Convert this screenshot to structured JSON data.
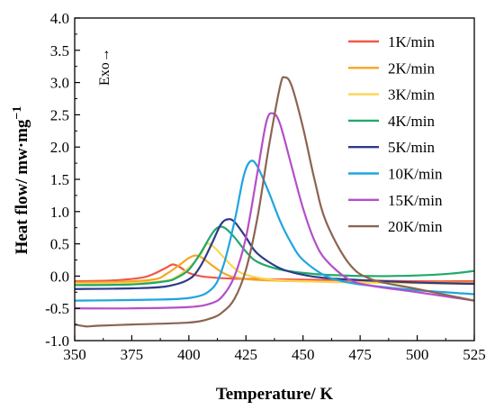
{
  "chart_data": {
    "type": "line",
    "title": "",
    "xlabel": "Temperature/ K",
    "ylabel_main": "Heat flow/ mw·mg",
    "ylabel_sup": "−1",
    "annotation": "Exo→",
    "xlim": [
      350,
      525
    ],
    "ylim": [
      -1.0,
      4.0
    ],
    "xticks": [
      350,
      375,
      400,
      425,
      450,
      475,
      500,
      525
    ],
    "xtick_labels": [
      "350",
      "375",
      "400",
      "425",
      "450",
      "475",
      "500",
      "525"
    ],
    "yticks": [
      -1.0,
      -0.5,
      0.0,
      0.5,
      1.0,
      1.5,
      2.0,
      2.5,
      3.0,
      3.5,
      4.0
    ],
    "ytick_labels": [
      "-1.0",
      "-0.5",
      "0.0",
      "0.5",
      "1.0",
      "1.5",
      "2.0",
      "2.5",
      "3.0",
      "3.5",
      "4.0"
    ],
    "grid": false,
    "legend_position": "top-right",
    "series": [
      {
        "name": "1K/min",
        "color": "#f0584a",
        "x": [
          350,
          360,
          370,
          380,
          385,
          390,
          393,
          396,
          400,
          405,
          410,
          420,
          440,
          460,
          480,
          500,
          525
        ],
        "y": [
          -0.08,
          -0.075,
          -0.06,
          -0.02,
          0.04,
          0.13,
          0.18,
          0.14,
          0.05,
          0.0,
          -0.02,
          -0.04,
          -0.05,
          -0.06,
          -0.07,
          -0.08,
          -0.08
        ]
      },
      {
        "name": "2K/min",
        "color": "#f6a623",
        "x": [
          350,
          370,
          385,
          390,
          395,
          400,
          403,
          406,
          410,
          415,
          420,
          430,
          450,
          470,
          500,
          525
        ],
        "y": [
          -0.1,
          -0.09,
          -0.05,
          0.03,
          0.15,
          0.28,
          0.32,
          0.28,
          0.17,
          0.05,
          -0.02,
          -0.06,
          -0.08,
          -0.09,
          -0.1,
          -0.1
        ]
      },
      {
        "name": "3K/min",
        "color": "#fad550",
        "x": [
          350,
          375,
          390,
          395,
          400,
          405,
          408,
          411,
          415,
          420,
          425,
          435,
          450,
          475,
          500,
          525
        ],
        "y": [
          -0.12,
          -0.11,
          -0.07,
          0.0,
          0.13,
          0.33,
          0.5,
          0.45,
          0.3,
          0.12,
          0.02,
          -0.05,
          -0.08,
          -0.1,
          -0.11,
          -0.12
        ]
      },
      {
        "name": "4K/min",
        "color": "#21a86b",
        "x": [
          350,
          375,
          390,
          395,
          400,
          405,
          410,
          413,
          416,
          420,
          425,
          430,
          440,
          450,
          460,
          480,
          500,
          515,
          525
        ],
        "y": [
          -0.14,
          -0.13,
          -0.08,
          -0.02,
          0.1,
          0.35,
          0.65,
          0.76,
          0.74,
          0.6,
          0.38,
          0.22,
          0.1,
          0.05,
          0.02,
          0.0,
          0.01,
          0.04,
          0.08
        ]
      },
      {
        "name": "5K/min",
        "color": "#2e3a87",
        "x": [
          350,
          375,
          390,
          400,
          405,
          410,
          414,
          417,
          420,
          425,
          430,
          440,
          450,
          460,
          480,
          500,
          525
        ],
        "y": [
          -0.2,
          -0.19,
          -0.16,
          -0.05,
          0.15,
          0.5,
          0.8,
          0.88,
          0.84,
          0.6,
          0.35,
          0.12,
          0.02,
          -0.03,
          -0.07,
          -0.1,
          -0.12
        ]
      },
      {
        "name": "10K/min",
        "color": "#1fa5e0",
        "x": [
          350,
          375,
          400,
          410,
          415,
          420,
          424,
          427,
          430,
          435,
          440,
          445,
          450,
          460,
          470,
          480,
          500,
          525
        ],
        "y": [
          -0.38,
          -0.37,
          -0.34,
          -0.2,
          0.15,
          0.85,
          1.55,
          1.78,
          1.7,
          1.3,
          0.85,
          0.5,
          0.25,
          0.0,
          -0.1,
          -0.15,
          -0.22,
          -0.28
        ]
      },
      {
        "name": "15K/min",
        "color": "#b44fc8",
        "x": [
          350,
          375,
          400,
          410,
          415,
          420,
          425,
          430,
          434,
          437,
          440,
          445,
          450,
          455,
          460,
          470,
          480,
          500,
          525
        ],
        "y": [
          -0.5,
          -0.5,
          -0.48,
          -0.42,
          -0.3,
          0.0,
          0.6,
          1.6,
          2.4,
          2.52,
          2.35,
          1.7,
          1.05,
          0.55,
          0.25,
          -0.05,
          -0.15,
          -0.25,
          -0.38
        ]
      },
      {
        "name": "20K/min",
        "color": "#8b6452",
        "x": [
          350,
          355,
          360,
          375,
          400,
          410,
          415,
          420,
          425,
          430,
          435,
          440,
          442,
          445,
          450,
          455,
          460,
          470,
          480,
          500,
          525
        ],
        "y": [
          -0.75,
          -0.78,
          -0.77,
          -0.75,
          -0.72,
          -0.65,
          -0.55,
          -0.35,
          0.1,
          0.9,
          2.0,
          2.95,
          3.08,
          2.95,
          2.3,
          1.5,
          0.85,
          0.2,
          -0.05,
          -0.2,
          -0.38
        ]
      }
    ]
  }
}
